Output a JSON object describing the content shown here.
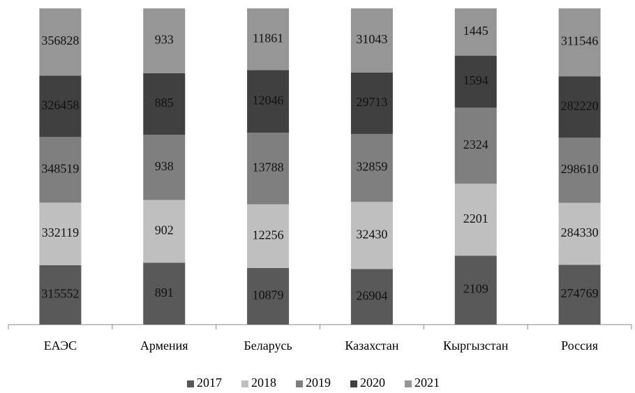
{
  "chart_data": {
    "type": "bar",
    "stack": "percent",
    "categories": [
      "ЕАЭС",
      "Армения",
      "Беларусь",
      "Казахстан",
      "Кыргызстан",
      "Россия"
    ],
    "series": [
      {
        "name": "2017",
        "color": "#595959",
        "values": [
          315552,
          891,
          10879,
          26904,
          2109,
          274769
        ]
      },
      {
        "name": "2018",
        "color": "#bfbfbf",
        "values": [
          332119,
          902,
          12256,
          32430,
          2201,
          284330
        ]
      },
      {
        "name": "2019",
        "color": "#7f7f7f",
        "values": [
          348519,
          938,
          13788,
          32859,
          2324,
          298610
        ]
      },
      {
        "name": "2020",
        "color": "#404040",
        "values": [
          326458,
          885,
          12046,
          29713,
          1594,
          282220
        ]
      },
      {
        "name": "2021",
        "color": "#969696",
        "values": [
          356828,
          933,
          11861,
          31043,
          1445,
          311546
        ]
      }
    ],
    "legend": "bottom"
  }
}
